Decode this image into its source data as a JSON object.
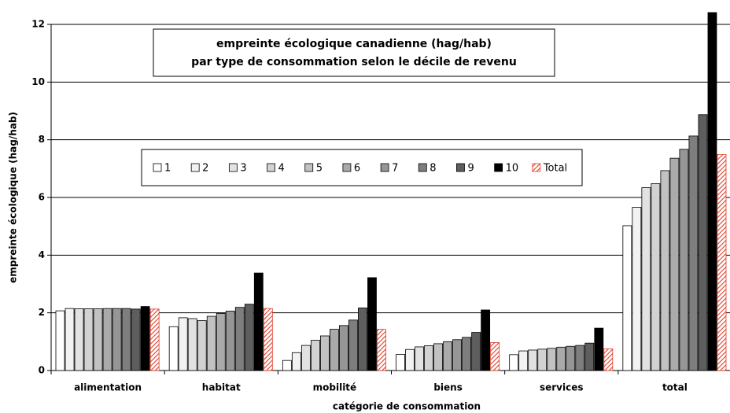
{
  "chart_data": {
    "type": "bar",
    "title": "empreinte écologique canadienne (hag/hab)",
    "subtitle": "par type de consommation selon le décile de revenu",
    "x_label": "catégorie de consommation",
    "y_label": "empreinte écologique (hag/hab)",
    "categories": [
      "alimentation",
      "habitat",
      "mobilité",
      "biens",
      "services",
      "total"
    ],
    "series": [
      {
        "name": "1",
        "color": "#ffffff",
        "values": [
          2.07,
          1.52,
          0.35,
          0.56,
          0.55,
          5.02
        ]
      },
      {
        "name": "2",
        "color": "#f2f2f2",
        "values": [
          2.15,
          1.83,
          0.62,
          0.73,
          0.68,
          5.66
        ]
      },
      {
        "name": "3",
        "color": "#e2e2e2",
        "values": [
          2.14,
          1.8,
          0.87,
          0.82,
          0.71,
          6.34
        ]
      },
      {
        "name": "4",
        "color": "#d2d2d2",
        "values": [
          2.14,
          1.73,
          1.05,
          0.86,
          0.74,
          6.48
        ]
      },
      {
        "name": "5",
        "color": "#c2c2c2",
        "values": [
          2.14,
          1.88,
          1.2,
          0.93,
          0.77,
          6.93
        ]
      },
      {
        "name": "6",
        "color": "#aaaaaa",
        "values": [
          2.15,
          1.98,
          1.43,
          1.0,
          0.81,
          7.36
        ]
      },
      {
        "name": "7",
        "color": "#969696",
        "values": [
          2.15,
          2.06,
          1.56,
          1.07,
          0.84,
          7.67
        ]
      },
      {
        "name": "8",
        "color": "#7e7e7e",
        "values": [
          2.15,
          2.19,
          1.75,
          1.15,
          0.87,
          8.13
        ]
      },
      {
        "name": "9",
        "color": "#5e5e5e",
        "values": [
          2.13,
          2.3,
          2.17,
          1.32,
          0.95,
          8.87
        ]
      },
      {
        "name": "10",
        "color": "#000000",
        "values": [
          2.22,
          3.38,
          3.22,
          2.1,
          1.47,
          12.41
        ]
      },
      {
        "name": "Total",
        "color": "#e03c28",
        "pattern": "hatch",
        "values": [
          2.13,
          2.15,
          1.43,
          0.97,
          0.75,
          7.49
        ]
      }
    ],
    "ylim": [
      0,
      12
    ],
    "yticks": [
      0,
      2,
      4,
      6,
      8,
      10,
      12
    ],
    "grid": true
  }
}
